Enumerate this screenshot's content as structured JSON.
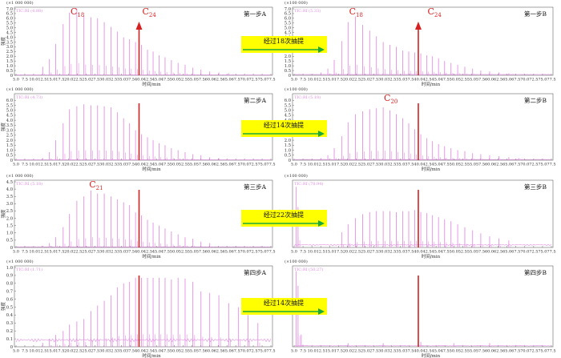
{
  "xtick_labels": [
    "5.0",
    "7.5",
    "10.0",
    "12.5",
    "15.0",
    "17.5",
    "20.0",
    "22.5",
    "25.0",
    "27.5",
    "30.0",
    "32.5",
    "35.0",
    "37.5",
    "40.0",
    "42.5",
    "45.0",
    "47.5",
    "50.0",
    "52.5",
    "55.0",
    "57.5",
    "60.0",
    "62.5",
    "65.0",
    "67.5",
    "70.0",
    "72.5",
    "75.0",
    "77.5"
  ],
  "xlabel": "时间/min",
  "ylabel": "强度",
  "colors": {
    "trace": "#e38fe3",
    "marker": "#d62020",
    "peak_label": "#d62020",
    "arrow_box": "#ffff00",
    "arrow": "#1aaa3a",
    "axis": "#333333"
  },
  "chart_data": [
    {
      "type": "line",
      "id": "A1",
      "title": "第一步A",
      "scale_label": "(×1 000 000)",
      "trace_info": "TIC:RI (4.88)",
      "ylim": [
        0,
        7.0
      ],
      "yticks": [
        "0",
        "0.5",
        "1.0",
        "1.5",
        "2.0",
        "2.5",
        "3.0",
        "3.5",
        "4.0",
        "4.5",
        "5.0",
        "5.5",
        "6.0",
        "6.5",
        "7.0"
      ],
      "marker_x": 40.0,
      "marker_arrow": true,
      "labels": [
        {
          "base": "C",
          "sub": "18",
          "x": 20.5
        },
        {
          "base": "C",
          "sub": "24",
          "x": 40.9
        }
      ],
      "peaks": [
        {
          "x": 12.6,
          "y": 0.9
        },
        {
          "x": 14.5,
          "y": 1.7
        },
        {
          "x": 16.3,
          "y": 3.3
        },
        {
          "x": 18.4,
          "y": 5.4
        },
        {
          "x": 20.2,
          "y": 6.6
        },
        {
          "x": 22.3,
          "y": 7.0
        },
        {
          "x": 24.3,
          "y": 6.2
        },
        {
          "x": 26.3,
          "y": 6.1
        },
        {
          "x": 28.2,
          "y": 6.0
        },
        {
          "x": 30.1,
          "y": 5.6
        },
        {
          "x": 32.0,
          "y": 5.1
        },
        {
          "x": 33.8,
          "y": 4.6
        },
        {
          "x": 35.6,
          "y": 4.0
        },
        {
          "x": 37.3,
          "y": 3.8
        },
        {
          "x": 39.0,
          "y": 3.5
        },
        {
          "x": 40.7,
          "y": 3.2
        },
        {
          "x": 42.4,
          "y": 2.7
        },
        {
          "x": 44.0,
          "y": 2.5
        },
        {
          "x": 45.7,
          "y": 2.1
        },
        {
          "x": 47.4,
          "y": 1.9
        },
        {
          "x": 49.2,
          "y": 1.6
        },
        {
          "x": 51.1,
          "y": 1.3
        },
        {
          "x": 53.1,
          "y": 1.1
        },
        {
          "x": 55.3,
          "y": 0.8
        },
        {
          "x": 57.6,
          "y": 0.6
        },
        {
          "x": 60.1,
          "y": 0.4
        },
        {
          "x": 62.7,
          "y": 0.3
        },
        {
          "x": 65.5,
          "y": 0.2
        }
      ],
      "baseline": 0.05
    },
    {
      "type": "line",
      "id": "B1",
      "title": "第一步B",
      "scale_label": "(×100 000)",
      "trace_info": "TIC:RI (5.33)",
      "ylim": [
        0,
        7.0
      ],
      "yticks": [
        "0",
        "0.5",
        "1.0",
        "1.5",
        "2.0",
        "2.5",
        "3.0",
        "3.5",
        "4.0",
        "4.5",
        "5.0",
        "5.5",
        "6.0",
        "6.5",
        "7.0"
      ],
      "marker_x": 40.0,
      "marker_arrow": true,
      "labels": [
        {
          "base": "C",
          "sub": "18",
          "x": 20.5
        },
        {
          "base": "C",
          "sub": "24",
          "x": 42.6
        }
      ],
      "peaks": [
        {
          "x": 12.6,
          "y": 0.3
        },
        {
          "x": 14.5,
          "y": 0.7
        },
        {
          "x": 16.3,
          "y": 1.6
        },
        {
          "x": 18.4,
          "y": 3.6
        },
        {
          "x": 20.2,
          "y": 5.6
        },
        {
          "x": 22.3,
          "y": 6.2
        },
        {
          "x": 24.3,
          "y": 5.3
        },
        {
          "x": 26.3,
          "y": 4.7
        },
        {
          "x": 28.2,
          "y": 4.1
        },
        {
          "x": 30.1,
          "y": 3.5
        },
        {
          "x": 32.0,
          "y": 3.2
        },
        {
          "x": 33.8,
          "y": 3.0
        },
        {
          "x": 35.6,
          "y": 2.6
        },
        {
          "x": 37.3,
          "y": 2.5
        },
        {
          "x": 39.0,
          "y": 2.4
        },
        {
          "x": 40.7,
          "y": 2.3
        },
        {
          "x": 42.4,
          "y": 2.1
        },
        {
          "x": 44.0,
          "y": 2.0
        },
        {
          "x": 45.7,
          "y": 1.8
        },
        {
          "x": 47.4,
          "y": 1.5
        },
        {
          "x": 49.2,
          "y": 1.3
        },
        {
          "x": 51.1,
          "y": 1.1
        },
        {
          "x": 53.1,
          "y": 0.9
        },
        {
          "x": 55.3,
          "y": 0.7
        },
        {
          "x": 57.6,
          "y": 0.5
        },
        {
          "x": 60.1,
          "y": 0.4
        },
        {
          "x": 62.7,
          "y": 0.3
        },
        {
          "x": 65.5,
          "y": 0.2
        }
      ],
      "baseline": 0.1
    },
    {
      "type": "line",
      "id": "A2",
      "title": "第二步A",
      "scale_label": "(×1 000 000)",
      "trace_info": "TIC:RI (4.73)",
      "ylim": [
        0,
        6.5
      ],
      "yticks": [
        "0",
        "0.5",
        "1.0",
        "1.5",
        "2.0",
        "2.5",
        "3.0",
        "3.5",
        "4.0",
        "4.5",
        "5.0",
        "5.5",
        "6.0"
      ],
      "marker_x": 40.0,
      "marker_arrow": false,
      "labels": [],
      "peaks": [
        {
          "x": 12.6,
          "y": 0.2
        },
        {
          "x": 14.5,
          "y": 0.8
        },
        {
          "x": 16.3,
          "y": 2.0
        },
        {
          "x": 18.4,
          "y": 3.7
        },
        {
          "x": 20.2,
          "y": 5.1
        },
        {
          "x": 22.3,
          "y": 5.4
        },
        {
          "x": 24.3,
          "y": 5.6
        },
        {
          "x": 26.3,
          "y": 5.5
        },
        {
          "x": 28.2,
          "y": 5.5
        },
        {
          "x": 30.1,
          "y": 5.4
        },
        {
          "x": 32.0,
          "y": 5.3
        },
        {
          "x": 33.8,
          "y": 4.8
        },
        {
          "x": 35.6,
          "y": 4.2
        },
        {
          "x": 37.3,
          "y": 3.7
        },
        {
          "x": 39.0,
          "y": 3.0
        },
        {
          "x": 40.7,
          "y": 2.6
        },
        {
          "x": 42.4,
          "y": 2.3
        },
        {
          "x": 44.0,
          "y": 2.0
        },
        {
          "x": 45.7,
          "y": 1.7
        },
        {
          "x": 47.4,
          "y": 1.5
        },
        {
          "x": 49.2,
          "y": 1.2
        },
        {
          "x": 51.1,
          "y": 1.0
        },
        {
          "x": 53.1,
          "y": 0.8
        },
        {
          "x": 55.3,
          "y": 0.6
        },
        {
          "x": 57.6,
          "y": 0.5
        },
        {
          "x": 60.1,
          "y": 0.3
        },
        {
          "x": 62.7,
          "y": 0.2
        }
      ],
      "baseline": 0.05
    },
    {
      "type": "line",
      "id": "B2",
      "title": "第二步B",
      "scale_label": "(×100 000)",
      "trace_info": "TIC:RI (5.18)",
      "ylim": [
        0,
        6.5
      ],
      "yticks": [
        "0",
        "0.5",
        "1.0",
        "1.5",
        "2.0",
        "2.5",
        "3.0",
        "3.5",
        "4.0",
        "4.5",
        "5.0",
        "5.5",
        "6.0"
      ],
      "marker_x": 40.0,
      "marker_arrow": false,
      "labels": [
        {
          "base": "C",
          "sub": "20",
          "x": 30.3
        }
      ],
      "peaks": [
        {
          "x": 12.6,
          "y": 0.2
        },
        {
          "x": 14.5,
          "y": 0.5
        },
        {
          "x": 16.3,
          "y": 1.2
        },
        {
          "x": 18.4,
          "y": 2.4
        },
        {
          "x": 20.2,
          "y": 3.8
        },
        {
          "x": 22.3,
          "y": 4.6
        },
        {
          "x": 24.3,
          "y": 4.9
        },
        {
          "x": 26.3,
          "y": 5.1
        },
        {
          "x": 28.2,
          "y": 5.2
        },
        {
          "x": 30.1,
          "y": 5.3
        },
        {
          "x": 32.0,
          "y": 5.0
        },
        {
          "x": 33.8,
          "y": 4.6
        },
        {
          "x": 35.6,
          "y": 4.2
        },
        {
          "x": 37.3,
          "y": 3.7
        },
        {
          "x": 39.0,
          "y": 3.1
        },
        {
          "x": 40.7,
          "y": 2.6
        },
        {
          "x": 42.4,
          "y": 2.2
        },
        {
          "x": 44.0,
          "y": 1.9
        },
        {
          "x": 45.7,
          "y": 1.6
        },
        {
          "x": 47.4,
          "y": 1.4
        },
        {
          "x": 49.2,
          "y": 1.2
        },
        {
          "x": 51.1,
          "y": 1.0
        },
        {
          "x": 53.1,
          "y": 0.9
        },
        {
          "x": 55.3,
          "y": 0.7
        },
        {
          "x": 57.6,
          "y": 0.6
        },
        {
          "x": 60.1,
          "y": 0.5
        },
        {
          "x": 62.7,
          "y": 0.4
        },
        {
          "x": 65.5,
          "y": 0.3
        },
        {
          "x": 68.3,
          "y": 0.2
        }
      ],
      "baseline": 0.08
    },
    {
      "type": "line",
      "id": "A3",
      "title": "第三步A",
      "scale_label": "(×1 000 000)",
      "trace_info": "TIC:RI (5.18)",
      "ylim": [
        0,
        4.5
      ],
      "yticks": [
        "0",
        "0.5",
        "1.0",
        "1.5",
        "2.0",
        "2.5",
        "3.0",
        "3.5",
        "4.0",
        "4.5"
      ],
      "marker_x": 40.0,
      "marker_arrow": false,
      "labels": [
        {
          "base": "C",
          "sub": "21",
          "x": 25.8
        }
      ],
      "peaks": [
        {
          "x": 12.6,
          "y": 0.1
        },
        {
          "x": 14.5,
          "y": 0.3
        },
        {
          "x": 16.3,
          "y": 0.7
        },
        {
          "x": 18.4,
          "y": 1.4
        },
        {
          "x": 20.2,
          "y": 2.3
        },
        {
          "x": 22.3,
          "y": 3.2
        },
        {
          "x": 24.3,
          "y": 3.5
        },
        {
          "x": 26.3,
          "y": 3.9
        },
        {
          "x": 28.2,
          "y": 3.7
        },
        {
          "x": 30.1,
          "y": 3.7
        },
        {
          "x": 32.0,
          "y": 3.5
        },
        {
          "x": 33.8,
          "y": 3.3
        },
        {
          "x": 35.6,
          "y": 3.1
        },
        {
          "x": 37.3,
          "y": 2.9
        },
        {
          "x": 39.0,
          "y": 2.4
        },
        {
          "x": 40.7,
          "y": 2.2
        },
        {
          "x": 42.4,
          "y": 1.9
        },
        {
          "x": 44.0,
          "y": 1.7
        },
        {
          "x": 45.7,
          "y": 1.5
        },
        {
          "x": 47.4,
          "y": 1.3
        },
        {
          "x": 49.2,
          "y": 1.1
        },
        {
          "x": 51.1,
          "y": 0.9
        },
        {
          "x": 53.1,
          "y": 0.7
        },
        {
          "x": 55.3,
          "y": 0.6
        },
        {
          "x": 57.6,
          "y": 0.4
        },
        {
          "x": 60.1,
          "y": 0.3
        }
      ],
      "baseline": 0.05
    },
    {
      "type": "line",
      "id": "B3",
      "title": "第三步B",
      "scale_label": "(×100 000)",
      "trace_info": "TIC:RI (78.94)",
      "ylim": [
        0,
        6.5
      ],
      "yticks": [],
      "marker_x": 40.0,
      "marker_arrow": false,
      "labels": [],
      "peaks": [
        {
          "x": 5.6,
          "y": 6.0
        },
        {
          "x": 6.1,
          "y": 4.0
        },
        {
          "x": 18.4,
          "y": 1.5
        },
        {
          "x": 20.2,
          "y": 2.3
        },
        {
          "x": 22.3,
          "y": 2.9
        },
        {
          "x": 24.3,
          "y": 3.3
        },
        {
          "x": 26.3,
          "y": 3.5
        },
        {
          "x": 28.2,
          "y": 3.6
        },
        {
          "x": 30.1,
          "y": 3.6
        },
        {
          "x": 32.0,
          "y": 3.6
        },
        {
          "x": 33.8,
          "y": 3.5
        },
        {
          "x": 35.6,
          "y": 3.6
        },
        {
          "x": 37.3,
          "y": 3.6
        },
        {
          "x": 39.0,
          "y": 3.7
        },
        {
          "x": 40.7,
          "y": 3.5
        },
        {
          "x": 42.4,
          "y": 3.4
        },
        {
          "x": 44.0,
          "y": 3.2
        },
        {
          "x": 45.7,
          "y": 3.0
        },
        {
          "x": 47.4,
          "y": 2.8
        },
        {
          "x": 49.2,
          "y": 2.6
        },
        {
          "x": 51.1,
          "y": 2.3
        },
        {
          "x": 53.1,
          "y": 2.0
        },
        {
          "x": 55.3,
          "y": 1.7
        },
        {
          "x": 57.6,
          "y": 1.4
        },
        {
          "x": 60.1,
          "y": 1.1
        },
        {
          "x": 62.7,
          "y": 0.9
        },
        {
          "x": 65.5,
          "y": 0.7
        }
      ],
      "baseline": 0.3
    },
    {
      "type": "line",
      "id": "A4",
      "title": "第四步A",
      "scale_label": "(×1 000 000)",
      "trace_info": "TIC:RI (1.71)",
      "ylim": [
        0,
        1.0
      ],
      "yticks": [
        "0",
        "0.1",
        "0.2",
        "0.3",
        "0.4",
        "0.5",
        "0.6",
        "0.7",
        "0.8",
        "0.9",
        "1.0"
      ],
      "marker_x": 40.0,
      "marker_arrow": false,
      "labels": [],
      "peaks": [
        {
          "x": 12.6,
          "y": 0.05
        },
        {
          "x": 14.5,
          "y": 0.1
        },
        {
          "x": 16.3,
          "y": 0.15
        },
        {
          "x": 18.4,
          "y": 0.2
        },
        {
          "x": 20.2,
          "y": 0.28
        },
        {
          "x": 22.3,
          "y": 0.32
        },
        {
          "x": 24.3,
          "y": 0.35
        },
        {
          "x": 26.3,
          "y": 0.45
        },
        {
          "x": 28.2,
          "y": 0.52
        },
        {
          "x": 30.1,
          "y": 0.58
        },
        {
          "x": 32.0,
          "y": 0.65
        },
        {
          "x": 33.8,
          "y": 0.75
        },
        {
          "x": 35.6,
          "y": 0.8
        },
        {
          "x": 37.3,
          "y": 0.82
        },
        {
          "x": 39.0,
          "y": 0.87
        },
        {
          "x": 40.7,
          "y": 0.87
        },
        {
          "x": 42.4,
          "y": 0.87
        },
        {
          "x": 44.0,
          "y": 0.87
        },
        {
          "x": 45.7,
          "y": 0.87
        },
        {
          "x": 47.4,
          "y": 0.87
        },
        {
          "x": 49.2,
          "y": 0.85
        },
        {
          "x": 51.1,
          "y": 0.87
        },
        {
          "x": 53.1,
          "y": 0.86
        },
        {
          "x": 55.3,
          "y": 0.82
        },
        {
          "x": 57.6,
          "y": 0.7
        },
        {
          "x": 60.1,
          "y": 0.68
        },
        {
          "x": 62.7,
          "y": 0.65
        },
        {
          "x": 65.5,
          "y": 0.55
        },
        {
          "x": 68.3,
          "y": 0.5
        },
        {
          "x": 71.0,
          "y": 0.4
        },
        {
          "x": 73.8,
          "y": 0.3
        }
      ],
      "baseline": 0.1
    },
    {
      "type": "line",
      "id": "B4",
      "title": "第四步B",
      "scale_label": "(×100 000)",
      "trace_info": "TIC:RI (50.27)",
      "ylim": [
        0,
        6.5
      ],
      "yticks": [],
      "marker_x": 40.0,
      "marker_arrow": false,
      "labels": [],
      "peaks": [
        {
          "x": 5.6,
          "y": 6.2
        },
        {
          "x": 6.1,
          "y": 5.0
        },
        {
          "x": 7.0,
          "y": 1.0
        },
        {
          "x": 20.2,
          "y": 0.3
        },
        {
          "x": 30.1,
          "y": 0.3
        },
        {
          "x": 40.7,
          "y": 0.4
        },
        {
          "x": 50.0,
          "y": 0.3
        },
        {
          "x": 60.1,
          "y": 0.3
        }
      ],
      "baseline": 0.1
    }
  ],
  "transitions": [
    {
      "id": "t1",
      "text": "经过18次抽提"
    },
    {
      "id": "t2",
      "text": "经过14次抽提"
    },
    {
      "id": "t3",
      "text": "经过22次抽提"
    },
    {
      "id": "t4",
      "text": "经过14次抽提"
    }
  ]
}
